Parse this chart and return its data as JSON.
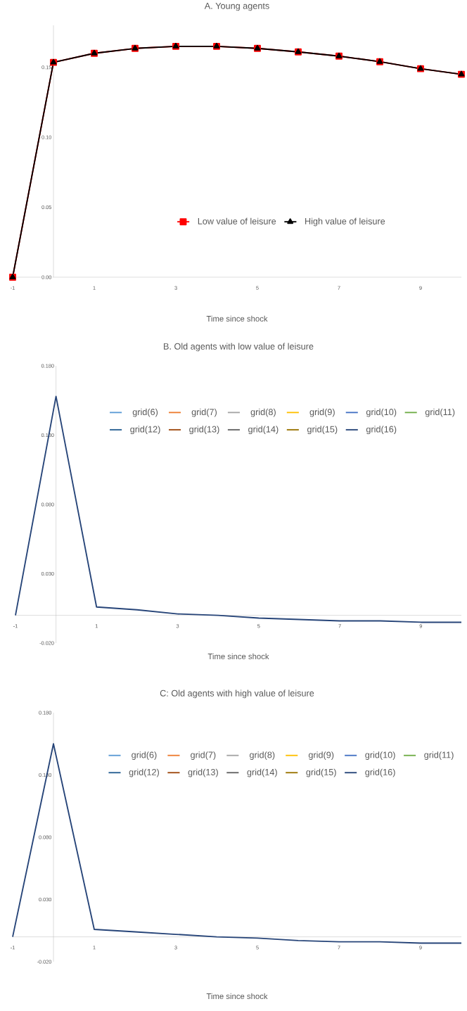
{
  "chart_data": [
    {
      "type": "line",
      "title": "A. Young agents",
      "xlabel": "Time since shock",
      "x": [
        -1,
        0,
        1,
        2,
        3,
        4,
        5,
        6,
        7,
        8,
        9,
        10
      ],
      "xlim": [
        -1,
        10
      ],
      "xticks": [
        -1,
        1,
        3,
        5,
        7,
        9
      ],
      "ylim": [
        0,
        0.18
      ],
      "yticks": [
        {
          "value": 0,
          "label": "0.00"
        },
        {
          "value": 0.05,
          "label": "0.05"
        },
        {
          "value": 0.1,
          "label": "0.10"
        },
        {
          "value": 0.15,
          "label": "0.15"
        }
      ],
      "legend": "bottom",
      "line_style": "solid",
      "series": [
        {
          "name": "Low value of leisure",
          "color": "#ff0000",
          "marker": "square",
          "values": [
            0,
            0.1535,
            0.16,
            0.1635,
            0.165,
            0.165,
            0.1635,
            0.161,
            0.158,
            0.154,
            0.149,
            0.145
          ]
        },
        {
          "name": "High value of leisure",
          "color": "#000000",
          "marker": "triangle",
          "values": [
            0,
            0.1535,
            0.16,
            0.1635,
            0.165,
            0.165,
            0.1635,
            0.161,
            0.158,
            0.154,
            0.149,
            0.145
          ]
        }
      ]
    },
    {
      "type": "line",
      "title": "B. Old agents with low value of leisure",
      "xlabel": "Time since shock",
      "x": [
        -1,
        0,
        1,
        2,
        3,
        4,
        5,
        6,
        7,
        8,
        9,
        10
      ],
      "xlim": [
        -1,
        10
      ],
      "xticks": [
        -1,
        1,
        3,
        5,
        7,
        9
      ],
      "ylim": [
        -0.02,
        0.18
      ],
      "yticks": [
        {
          "value": -0.02,
          "label": "-0.020"
        },
        {
          "value": 0.03,
          "label": "0.030"
        },
        {
          "value": 0.08,
          "label": "0.080"
        },
        {
          "value": 0.13,
          "label": "0.130"
        },
        {
          "value": 0.18,
          "label": "0.180"
        }
      ],
      "legend": "top",
      "marker": "none",
      "line_style": "solid",
      "series": [
        {
          "name": "grid(6)",
          "color": "#5b9bd5",
          "values": [
            null,
            null,
            null,
            null,
            null,
            null,
            null,
            null,
            null,
            null,
            null,
            null
          ]
        },
        {
          "name": "grid(7)",
          "color": "#ed7d31",
          "values": [
            null,
            null,
            null,
            null,
            null,
            null,
            null,
            null,
            null,
            null,
            null,
            null
          ]
        },
        {
          "name": "grid(8)",
          "color": "#a5a5a5",
          "values": [
            null,
            null,
            null,
            null,
            null,
            null,
            null,
            null,
            null,
            null,
            null,
            null
          ]
        },
        {
          "name": "grid(9)",
          "color": "#ffc000",
          "values": [
            null,
            null,
            null,
            null,
            null,
            null,
            null,
            null,
            null,
            null,
            null,
            null
          ]
        },
        {
          "name": "grid(10)",
          "color": "#4472c4",
          "values": [
            null,
            null,
            null,
            null,
            null,
            null,
            null,
            null,
            null,
            null,
            null,
            null
          ]
        },
        {
          "name": "grid(11)",
          "color": "#70ad47",
          "values": [
            null,
            null,
            null,
            null,
            null,
            null,
            null,
            null,
            null,
            null,
            null,
            null
          ]
        },
        {
          "name": "grid(12)",
          "color": "#255e91",
          "values": [
            null,
            null,
            null,
            null,
            null,
            null,
            null,
            null,
            null,
            null,
            null,
            null
          ]
        },
        {
          "name": "grid(13)",
          "color": "#9e480e",
          "values": [
            null,
            null,
            null,
            null,
            null,
            null,
            null,
            null,
            null,
            null,
            null,
            null
          ]
        },
        {
          "name": "grid(14)",
          "color": "#636363",
          "values": [
            null,
            null,
            null,
            null,
            null,
            null,
            null,
            null,
            null,
            null,
            null,
            null
          ]
        },
        {
          "name": "grid(15)",
          "color": "#997300",
          "values": [
            null,
            null,
            null,
            null,
            null,
            null,
            null,
            null,
            null,
            null,
            null,
            null
          ]
        },
        {
          "name": "grid(16)",
          "color": "#264478",
          "values": [
            0.0,
            0.158,
            0.006,
            0.004,
            0.001,
            0.0,
            -0.002,
            -0.003,
            -0.004,
            -0.004,
            -0.005,
            -0.005
          ]
        }
      ]
    },
    {
      "type": "line",
      "title": "C: Old agents with high value of leisure",
      "xlabel": "Time since shock",
      "x": [
        -1,
        0,
        1,
        2,
        3,
        4,
        5,
        6,
        7,
        8,
        9,
        10
      ],
      "xlim": [
        -1,
        10
      ],
      "xticks": [
        -1,
        1,
        3,
        5,
        7,
        9
      ],
      "ylim": [
        -0.02,
        0.18
      ],
      "yticks": [
        {
          "value": -0.02,
          "label": "-0.020"
        },
        {
          "value": 0.03,
          "label": "0.030"
        },
        {
          "value": 0.08,
          "label": "0.080"
        },
        {
          "value": 0.13,
          "label": "0.130"
        },
        {
          "value": 0.18,
          "label": "0.180"
        }
      ],
      "legend": "top",
      "marker": "none",
      "line_style": "solid",
      "series": [
        {
          "name": "grid(6)",
          "color": "#5b9bd5",
          "values": [
            null,
            null,
            null,
            null,
            null,
            null,
            null,
            null,
            null,
            null,
            null,
            null
          ]
        },
        {
          "name": "grid(7)",
          "color": "#ed7d31",
          "values": [
            null,
            null,
            null,
            null,
            null,
            null,
            null,
            null,
            null,
            null,
            null,
            null
          ]
        },
        {
          "name": "grid(8)",
          "color": "#a5a5a5",
          "values": [
            null,
            null,
            null,
            null,
            null,
            null,
            null,
            null,
            null,
            null,
            null,
            null
          ]
        },
        {
          "name": "grid(9)",
          "color": "#ffc000",
          "values": [
            null,
            null,
            null,
            null,
            null,
            null,
            null,
            null,
            null,
            null,
            null,
            null
          ]
        },
        {
          "name": "grid(10)",
          "color": "#4472c4",
          "values": [
            null,
            null,
            null,
            null,
            null,
            null,
            null,
            null,
            null,
            null,
            null,
            null
          ]
        },
        {
          "name": "grid(11)",
          "color": "#70ad47",
          "values": [
            null,
            null,
            null,
            null,
            null,
            null,
            null,
            null,
            null,
            null,
            null,
            null
          ]
        },
        {
          "name": "grid(12)",
          "color": "#255e91",
          "values": [
            null,
            null,
            null,
            null,
            null,
            null,
            null,
            null,
            null,
            null,
            null,
            null
          ]
        },
        {
          "name": "grid(13)",
          "color": "#9e480e",
          "values": [
            null,
            null,
            null,
            null,
            null,
            null,
            null,
            null,
            null,
            null,
            null,
            null
          ]
        },
        {
          "name": "grid(14)",
          "color": "#636363",
          "values": [
            null,
            null,
            null,
            null,
            null,
            null,
            null,
            null,
            null,
            null,
            null,
            null
          ]
        },
        {
          "name": "grid(15)",
          "color": "#997300",
          "values": [
            null,
            null,
            null,
            null,
            null,
            null,
            null,
            null,
            null,
            null,
            null,
            null
          ]
        },
        {
          "name": "grid(16)",
          "color": "#264478",
          "values": [
            0.0,
            0.155,
            0.006,
            0.004,
            0.002,
            0.0,
            -0.001,
            -0.003,
            -0.004,
            -0.004,
            -0.005,
            -0.005
          ]
        }
      ]
    }
  ]
}
